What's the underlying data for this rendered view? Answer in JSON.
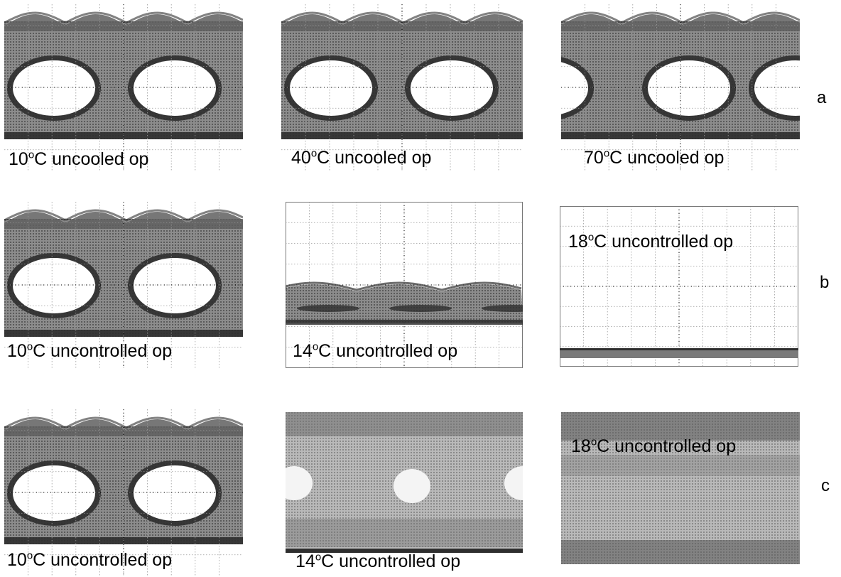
{
  "figure": {
    "colors": {
      "trace": "#5f5f5f",
      "dark": "#2e2e2e",
      "noise": "#8a8a8a",
      "grid": "#9a9a9a",
      "eye": "#ffffff",
      "dense": "#cfcfcf"
    },
    "rows": [
      {
        "label": "a",
        "panels": [
          {
            "kind": "eye",
            "caption": {
              "num": "10",
              "deg": "o",
              "rest": "C uncooled op"
            }
          },
          {
            "kind": "eye",
            "caption": {
              "num": "40",
              "deg": "o",
              "rest": "C uncooled op"
            }
          },
          {
            "kind": "eye-shifted",
            "caption": {
              "num": "70",
              "deg": "o",
              "rest": "C uncooled op"
            }
          }
        ]
      },
      {
        "label": "b",
        "panels": [
          {
            "kind": "eye",
            "caption": {
              "num": "10",
              "deg": "o",
              "rest": "C uncontrolled op"
            }
          },
          {
            "kind": "collapsed",
            "caption": {
              "num": "14",
              "deg": "o",
              "rest": "C uncontrolled op"
            }
          },
          {
            "kind": "flat",
            "caption": {
              "num": "18",
              "deg": "o",
              "rest": "C uncontrolled op"
            }
          }
        ]
      },
      {
        "label": "c",
        "panels": [
          {
            "kind": "eye",
            "caption": {
              "num": "10",
              "deg": "o",
              "rest": "C uncontrolled op"
            }
          },
          {
            "kind": "noisy-dots",
            "caption": {
              "num": "14",
              "deg": "o",
              "rest": "C uncontrolled op"
            }
          },
          {
            "kind": "noisy-flat",
            "caption": {
              "num": "18",
              "deg": "o",
              "rest": "C uncontrolled op"
            }
          }
        ]
      }
    ]
  }
}
